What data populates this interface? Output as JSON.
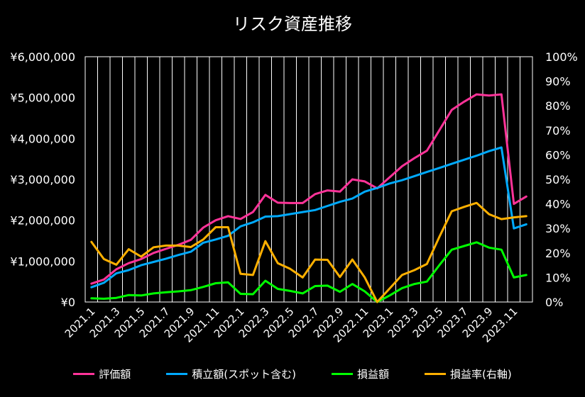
{
  "chart_data": {
    "type": "line",
    "title": "リスク資産推移",
    "x": [
      "2021.1",
      "2021.2",
      "2021.3",
      "2021.4",
      "2021.5",
      "2021.6",
      "2021.7",
      "2021.8",
      "2021.9",
      "2021.10",
      "2021.11",
      "2021.12",
      "2022.1",
      "2022.2",
      "2022.3",
      "2022.4",
      "2022.5",
      "2022.6",
      "2022.7",
      "2022.8",
      "2022.9",
      "2022.10",
      "2022.11",
      "2022.12",
      "2023.1",
      "2023.2",
      "2023.3",
      "2023.4",
      "2023.5",
      "2023.6",
      "2023.7",
      "2023.8",
      "2023.9",
      "2023.10",
      "2023.11",
      "2023.12"
    ],
    "xtick_labels": [
      "2021.1",
      "2021.3",
      "2021.5",
      "2021.7",
      "2021.9",
      "2021.11",
      "2022.1",
      "2022.3",
      "2022.5",
      "2022.7",
      "2022.9",
      "2022.11",
      "2023.1",
      "2023.3",
      "2023.5",
      "2023.7",
      "2023.9",
      "2023.11"
    ],
    "y_left": {
      "ylim": [
        0,
        6000000
      ],
      "tick_labels": [
        "¥0",
        "¥1,000,000",
        "¥2,000,000",
        "¥3,000,000",
        "¥4,000,000",
        "¥5,000,000",
        "¥6,000,000"
      ]
    },
    "y_right": {
      "ylim": [
        0,
        100
      ],
      "tick_labels": [
        "0%",
        "10%",
        "20%",
        "30%",
        "40%",
        "50%",
        "60%",
        "70%",
        "80%",
        "90%",
        "100%"
      ]
    },
    "grid": "vertical",
    "legend_position": "bottom",
    "series": [
      {
        "name": "評価額",
        "axis": "left",
        "color": "#ff3399",
        "values": [
          450000,
          550000,
          800000,
          950000,
          1050000,
          1200000,
          1300000,
          1400000,
          1520000,
          1820000,
          2000000,
          2100000,
          2030000,
          2200000,
          2620000,
          2430000,
          2420000,
          2420000,
          2640000,
          2730000,
          2700000,
          3000000,
          2950000,
          2780000,
          3050000,
          3320000,
          3520000,
          3700000,
          4200000,
          4700000,
          4900000,
          5080000,
          5050000,
          5080000,
          2400000,
          2580000
        ]
      },
      {
        "name": "積立額(スポット含む)",
        "axis": "left",
        "color": "#00aaff",
        "values": [
          360000,
          470000,
          700000,
          780000,
          900000,
          980000,
          1060000,
          1150000,
          1230000,
          1450000,
          1530000,
          1620000,
          1850000,
          1950000,
          2090000,
          2100000,
          2150000,
          2200000,
          2250000,
          2350000,
          2450000,
          2530000,
          2700000,
          2790000,
          2900000,
          2980000,
          3080000,
          3180000,
          3280000,
          3380000,
          3480000,
          3580000,
          3690000,
          3780000,
          1800000,
          1900000
        ]
      },
      {
        "name": "損益額",
        "axis": "left",
        "color": "#00ff00",
        "values": [
          90000,
          80000,
          100000,
          170000,
          160000,
          210000,
          240000,
          260000,
          290000,
          370000,
          460000,
          480000,
          200000,
          190000,
          520000,
          320000,
          270000,
          210000,
          390000,
          400000,
          250000,
          440000,
          260000,
          0,
          160000,
          340000,
          440000,
          500000,
          900000,
          1280000,
          1370000,
          1460000,
          1330000,
          1280000,
          600000,
          660000
        ]
      },
      {
        "name": "損益率(右軸)",
        "axis": "right",
        "color": "#ffb000",
        "values": [
          24.5,
          17.5,
          15.2,
          21.5,
          18.5,
          22.3,
          23.0,
          23.0,
          22.4,
          25.5,
          30.5,
          30.5,
          11.5,
          11.0,
          24.8,
          15.8,
          13.5,
          10.0,
          17.3,
          17.2,
          10.2,
          17.3,
          10.0,
          0.0,
          5.5,
          11.0,
          13.0,
          15.5,
          26.5,
          37.0,
          38.8,
          40.4,
          35.8,
          33.8,
          34.5,
          35.0
        ]
      }
    ]
  }
}
